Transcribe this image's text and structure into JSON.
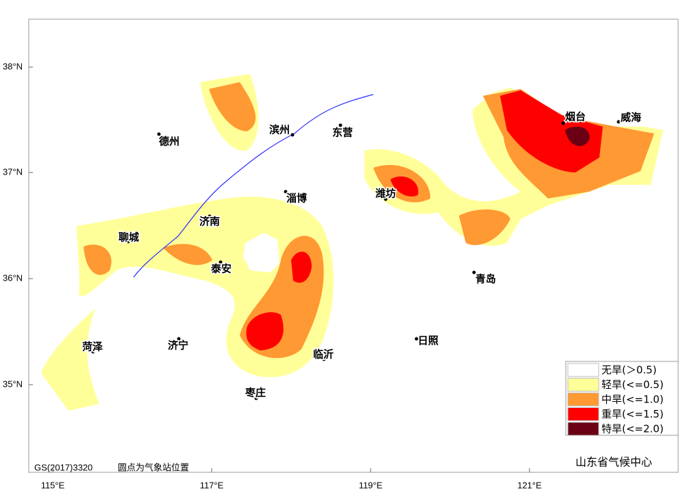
{
  "map": {
    "lat_labels": [
      "38°N",
      "37°N",
      "36°N",
      "35°N"
    ],
    "lon_labels": [
      "115°E",
      "117°E",
      "119°E",
      "121°E"
    ],
    "cities": [
      "德州",
      "滨州",
      "东营",
      "淄博",
      "潍坊",
      "烟台",
      "威海",
      "济南",
      "聊城",
      "泰安",
      "青岛",
      "济宁",
      "菏泽",
      "临沂",
      "日照",
      "枣庄"
    ],
    "legend": [
      {
        "label": "无旱(＞0.5)",
        "color": "#ffffff"
      },
      {
        "label": "轻旱(<=0.5)",
        "color": "#ffff99"
      },
      {
        "label": "中旱(<=1.0)",
        "color": "#ff9933"
      },
      {
        "label": "重旱(<=1.5)",
        "color": "#ff0000"
      },
      {
        "label": "特旱(<=2.0)",
        "color": "#6b0015"
      }
    ],
    "footer": {
      "code": "GS(2017)3320",
      "note": "圆点为气象站位置"
    },
    "agency": "山东省气候中心"
  }
}
